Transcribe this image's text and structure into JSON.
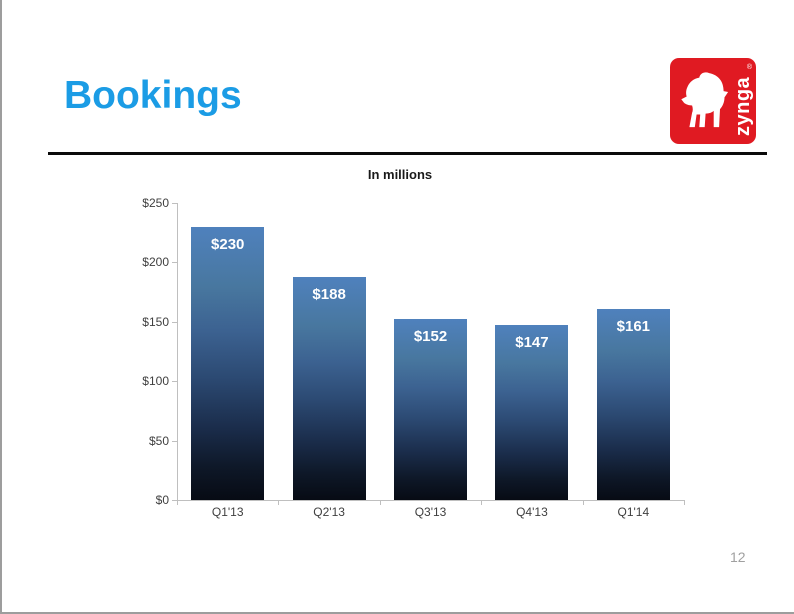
{
  "slide": {
    "title": "Bookings",
    "page_number": "12",
    "accent_color": "#1b9ce5"
  },
  "logo": {
    "text": "zynga",
    "trademark": "®",
    "color": "#e01a22"
  },
  "chart_data": {
    "type": "bar",
    "title": "In millions",
    "categories": [
      "Q1'13",
      "Q2'13",
      "Q3'13",
      "Q4'13",
      "Q1'14"
    ],
    "values": [
      230,
      188,
      152,
      147,
      161
    ],
    "bar_labels": [
      "$230",
      "$188",
      "$152",
      "$147",
      "$161"
    ],
    "y_ticks": [
      "$250",
      "$200",
      "$150",
      "$100",
      "$50",
      "$0"
    ],
    "y_tick_values": [
      250,
      200,
      150,
      100,
      50,
      0
    ],
    "ylim": [
      0,
      250
    ],
    "xlabel": "",
    "ylabel": "",
    "grid": false,
    "legend": false,
    "bar_color_top": "#4f81bd",
    "bar_color_bottom": "#070b14",
    "axis_color": "#bfbfbf"
  }
}
